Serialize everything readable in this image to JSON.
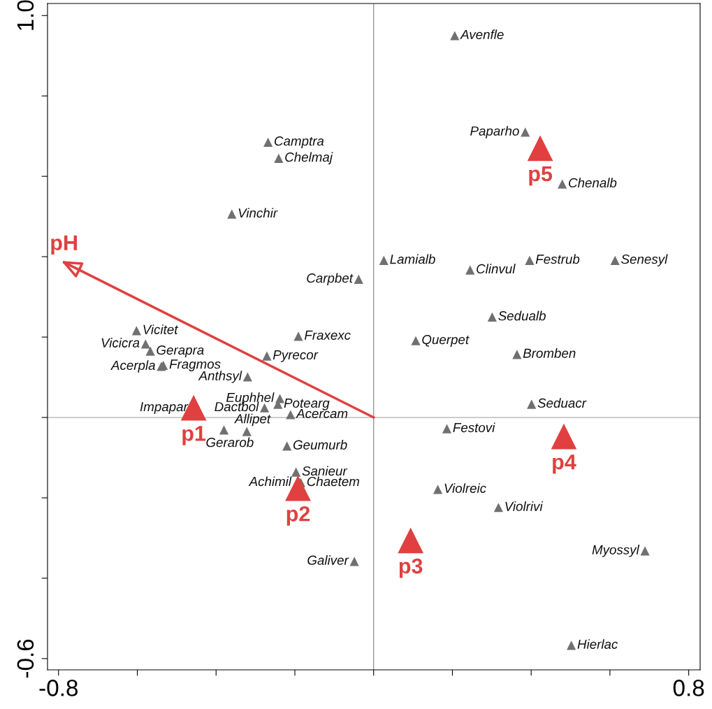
{
  "chart_data": {
    "type": "scatter",
    "xlim": [
      -0.828,
      0.829
    ],
    "ylim": [
      -0.628,
      1.03
    ],
    "xticks": [
      -0.8,
      {
        "value": -0.6,
        "label": null
      },
      {
        "value": -0.4,
        "label": null
      },
      {
        "value": -0.2,
        "label": null
      },
      {
        "value": 0,
        "label": null
      },
      {
        "value": 0.2,
        "label": null
      },
      {
        "value": 0.4,
        "label": null
      },
      {
        "value": 0.6,
        "label": null
      },
      0.8
    ],
    "yticks": [
      -0.6,
      {
        "value": -0.4,
        "label": null
      },
      {
        "value": -0.2,
        "label": null
      },
      {
        "value": 0,
        "label": null
      },
      {
        "value": 0.2,
        "label": null
      },
      {
        "value": 0.4,
        "label": null
      },
      {
        "value": 0.6,
        "label": null
      },
      {
        "value": 0.8,
        "label": null
      },
      {
        "value": 1.0,
        "label": "1.0"
      }
    ],
    "grid": false,
    "ref_lines": [
      {
        "axis": "x",
        "value": 0,
        "color": "#8c8c8c"
      },
      {
        "axis": "y",
        "value": 0,
        "color": "#b0b0b0"
      }
    ],
    "series": [
      {
        "color": "#707070",
        "marker": "triangle",
        "x": [
          0.206,
          0.385,
          0.479,
          -0.268,
          -0.241,
          -0.36,
          0.026,
          0.245,
          0.396,
          0.613,
          -0.038,
          0.301,
          0.107,
          0.364,
          -0.191,
          -0.271,
          -0.602,
          -0.579,
          -0.567,
          -0.539,
          -0.534,
          -0.32,
          -0.238,
          -0.277,
          -0.243,
          0.401,
          -0.322,
          -0.211,
          -0.38,
          0.186,
          -0.22,
          -0.197,
          -0.185,
          0.163,
          0.317,
          -0.049,
          0.689,
          0.502
        ],
        "values": [
          0.95,
          0.71,
          0.581,
          0.685,
          0.645,
          0.506,
          0.391,
          0.367,
          0.391,
          0.391,
          0.344,
          0.25,
          0.191,
          0.157,
          0.202,
          0.153,
          0.216,
          0.183,
          0.165,
          0.127,
          0.13,
          0.101,
          0.047,
          0.024,
          0.033,
          0.033,
          -0.035,
          0.007,
          -0.031,
          -0.028,
          -0.071,
          -0.136,
          -0.162,
          -0.179,
          -0.224,
          -0.358,
          -0.332,
          -0.567
        ]
      },
      {
        "color": "#e04040",
        "marker": "triangle",
        "x": [
          -0.457,
          -0.192,
          0.094,
          0.483,
          0.423
        ],
        "values": [
          0.024,
          -0.176,
          -0.306,
          -0.047,
          0.67
        ]
      },
      {
        "type": "line",
        "color": "#e04040",
        "x": [
          0,
          -0.786
        ],
        "values": [
          0,
          0.386
        ]
      }
    ],
    "annotations": [
      {
        "text": "Avenfle",
        "x": 0.206,
        "y": 0.95
      },
      {
        "text": "Paparho",
        "x": 0.385,
        "y": 0.71
      },
      {
        "text": "Chenalb",
        "x": 0.479,
        "y": 0.581
      },
      {
        "text": "Camptra",
        "x": -0.268,
        "y": 0.685
      },
      {
        "text": "Chelmaj",
        "x": -0.241,
        "y": 0.645
      },
      {
        "text": "Vinchir",
        "x": -0.36,
        "y": 0.506
      },
      {
        "text": "Lamialb",
        "x": 0.026,
        "y": 0.391
      },
      {
        "text": "Clinvul",
        "x": 0.245,
        "y": 0.367
      },
      {
        "text": "Festrub",
        "x": 0.396,
        "y": 0.391
      },
      {
        "text": "Senesyl",
        "x": 0.613,
        "y": 0.391
      },
      {
        "text": "Carpbet",
        "x": -0.038,
        "y": 0.344
      },
      {
        "text": "Sedualb",
        "x": 0.301,
        "y": 0.25
      },
      {
        "text": "Querpet",
        "x": 0.107,
        "y": 0.191
      },
      {
        "text": "Bromben",
        "x": 0.364,
        "y": 0.157
      },
      {
        "text": "Fraxexc",
        "x": -0.191,
        "y": 0.202
      },
      {
        "text": "Pyrecor",
        "x": -0.271,
        "y": 0.153
      },
      {
        "text": "Vicitet",
        "x": -0.602,
        "y": 0.216
      },
      {
        "text": "Vicicra",
        "x": -0.579,
        "y": 0.183
      },
      {
        "text": "Gerapra",
        "x": -0.567,
        "y": 0.165
      },
      {
        "text": "Acerpla",
        "x": -0.539,
        "y": 0.127
      },
      {
        "text": "Fragmos",
        "x": -0.534,
        "y": 0.13
      },
      {
        "text": "Anthsyl",
        "x": -0.32,
        "y": 0.101
      },
      {
        "text": "Impapar",
        "x": -0.457,
        "y": 0.024
      },
      {
        "text": "Euphhel",
        "x": -0.238,
        "y": 0.047
      },
      {
        "text": "Dactbol",
        "x": -0.277,
        "y": 0.024
      },
      {
        "text": "Potearg",
        "x": -0.243,
        "y": 0.033
      },
      {
        "text": "Seduacr",
        "x": 0.401,
        "y": 0.033
      },
      {
        "text": "Allipet",
        "x": -0.322,
        "y": -0.035
      },
      {
        "text": "Acercam",
        "x": -0.211,
        "y": 0.007
      },
      {
        "text": "Gerarob",
        "x": -0.38,
        "y": -0.031
      },
      {
        "text": "Festovi",
        "x": 0.186,
        "y": -0.028
      },
      {
        "text": "Geumurb",
        "x": -0.22,
        "y": -0.071
      },
      {
        "text": "Achimil",
        "x": -0.194,
        "y": -0.162
      },
      {
        "text": "Sanieur",
        "x": -0.197,
        "y": -0.136
      },
      {
        "text": "Chaetem",
        "x": -0.185,
        "y": -0.162
      },
      {
        "text": "Violreic",
        "x": 0.163,
        "y": -0.179
      },
      {
        "text": "Violrivi",
        "x": 0.317,
        "y": -0.224
      },
      {
        "text": "Galiver",
        "x": -0.049,
        "y": -0.358
      },
      {
        "text": "Myossyl",
        "x": 0.689,
        "y": -0.332
      },
      {
        "text": "Hierlac",
        "x": 0.502,
        "y": -0.567
      },
      {
        "text": "p1",
        "x": -0.457,
        "y": 0.024
      },
      {
        "text": "p2",
        "x": -0.192,
        "y": -0.176
      },
      {
        "text": "p3",
        "x": 0.094,
        "y": -0.306
      },
      {
        "text": "p4",
        "x": 0.483,
        "y": -0.047
      },
      {
        "text": "p5",
        "x": 0.423,
        "y": 0.67
      },
      {
        "text": "pH",
        "x": -0.786,
        "y": 0.386
      }
    ]
  }
}
